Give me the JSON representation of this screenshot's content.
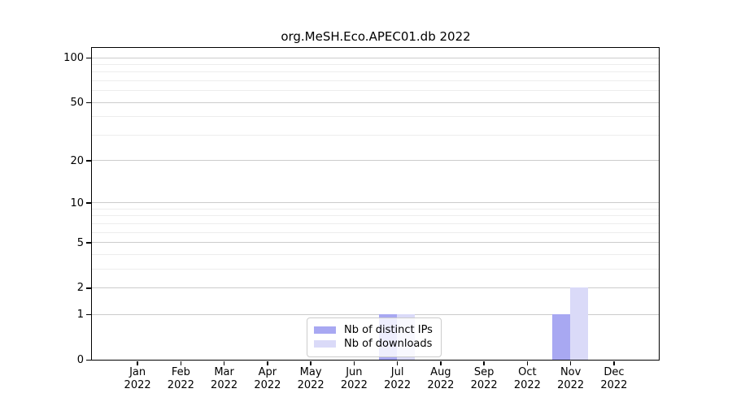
{
  "chart_data": {
    "type": "bar",
    "title": "org.MeSH.Eco.APEC01.db 2022",
    "categories": [
      "Jan",
      "Feb",
      "Mar",
      "Apr",
      "May",
      "Jun",
      "Jul",
      "Aug",
      "Sep",
      "Oct",
      "Nov",
      "Dec"
    ],
    "x_sublabel": "2022",
    "series": [
      {
        "name": "Nb of distinct IPs",
        "color": "#a8a8f2",
        "values": [
          0,
          0,
          0,
          0,
          0,
          0,
          1,
          0,
          0,
          0,
          1,
          0
        ]
      },
      {
        "name": "Nb of downloads",
        "color": "#dadaf8",
        "values": [
          0,
          0,
          0,
          0,
          0,
          0,
          1,
          0,
          0,
          0,
          2,
          0
        ]
      }
    ],
    "yscale": "log1p",
    "ylim": [
      0,
      110
    ],
    "yticks": [
      0,
      1,
      2,
      5,
      10,
      20,
      50,
      100
    ],
    "yminorticks": [
      3,
      4,
      6,
      7,
      8,
      9,
      30,
      40,
      60,
      70,
      80,
      90
    ],
    "grid": "horizontal",
    "legend_position": "bottom-center"
  },
  "colors": {
    "axis": "#000000",
    "major_grid": "#cccccc",
    "minor_grid": "#ededed",
    "legend_border": "#cccccc",
    "background": "#ffffff"
  }
}
